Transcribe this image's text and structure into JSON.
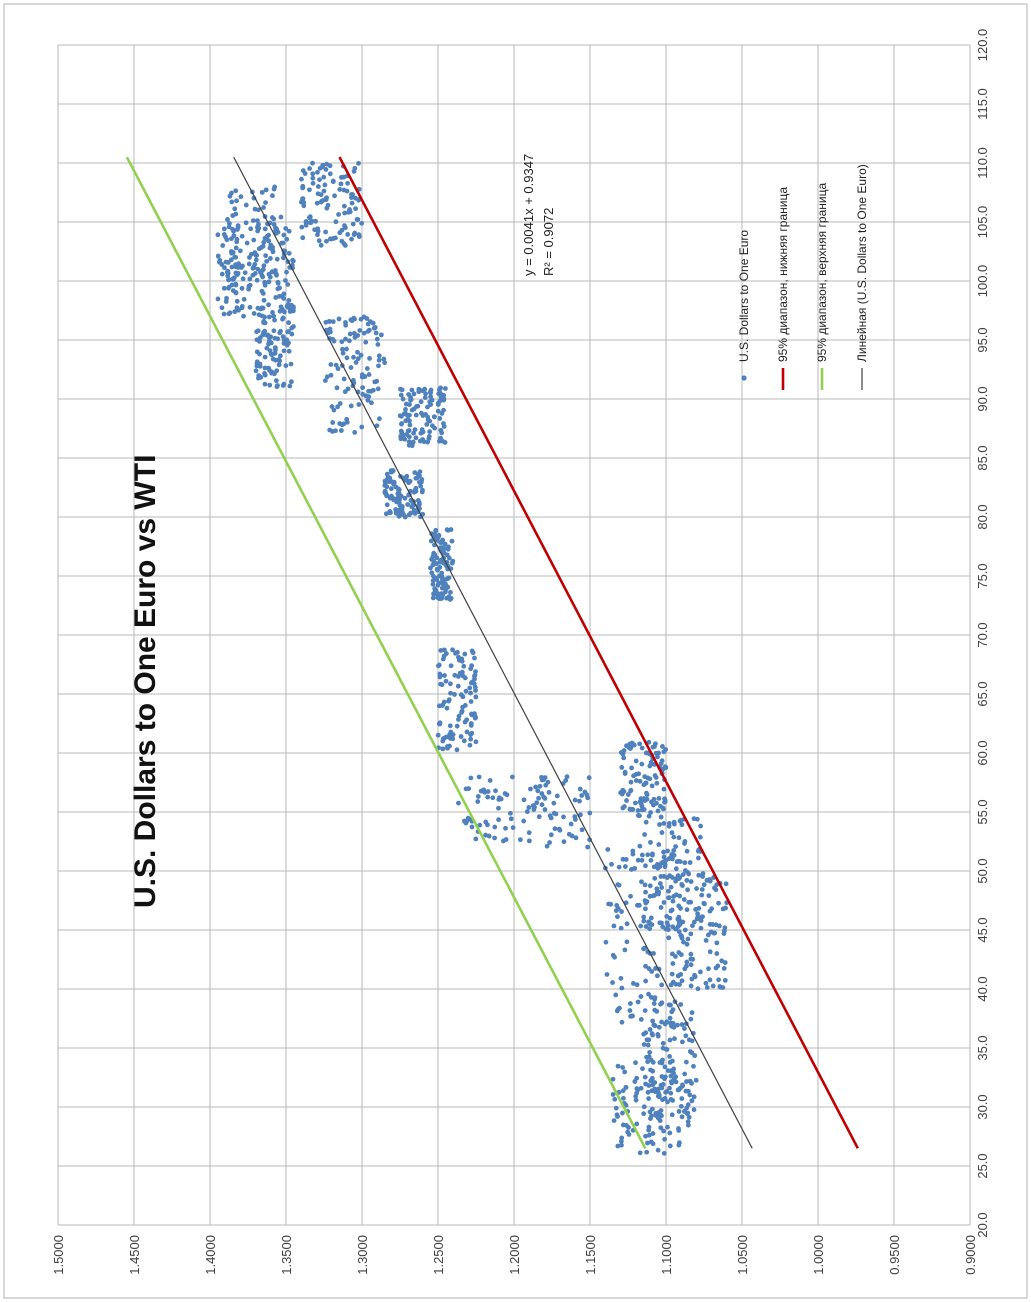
{
  "chart_data": {
    "type": "scatter",
    "title": "U.S. Dollars to One Euro vs WTI",
    "xlabel": "",
    "ylabel": "",
    "xlim": [
      20.0,
      120.0
    ],
    "ylim": [
      0.9,
      1.5
    ],
    "x_ticks": [
      "20.0",
      "25.0",
      "30.0",
      "35.0",
      "40.0",
      "45.0",
      "50.0",
      "55.0",
      "60.0",
      "65.0",
      "70.0",
      "75.0",
      "80.0",
      "85.0",
      "90.0",
      "95.0",
      "100.0",
      "105.0",
      "110.0",
      "115.0",
      "120.0"
    ],
    "y_ticks": [
      "0.9000",
      "0.9500",
      "1.0000",
      "1.0500",
      "1.1000",
      "1.1500",
      "1.2000",
      "1.2500",
      "1.3000",
      "1.3500",
      "1.4000",
      "1.4500",
      "1.5000"
    ],
    "grid": true,
    "legend_position": "bottom-right",
    "trendline_equation": "y = 0.0041x + 0.9347",
    "r_squared": "R² = 0.9072",
    "series": [
      {
        "name": "U.S. Dollars to One Euro",
        "kind": "scatter",
        "color": "#4f81bd",
        "clusters": [
          {
            "x": [
              26,
              34
            ],
            "y": [
              1.085,
              1.135
            ]
          },
          {
            "x": [
              29,
              39
            ],
            "y": [
              1.08,
              1.115
            ]
          },
          {
            "x": [
              36,
              52
            ],
            "y": [
              1.09,
              1.14
            ]
          },
          {
            "x": [
              40,
              50
            ],
            "y": [
              1.06,
              1.1
            ]
          },
          {
            "x": [
              45,
              55
            ],
            "y": [
              1.075,
              1.12
            ]
          },
          {
            "x": [
              55,
              61
            ],
            "y": [
              1.1,
              1.13
            ]
          },
          {
            "x": [
              52,
              58
            ],
            "y": [
              1.15,
              1.24
            ]
          },
          {
            "x": [
              60,
              69
            ],
            "y": [
              1.225,
              1.25
            ]
          },
          {
            "x": [
              73,
              79
            ],
            "y": [
              1.24,
              1.255
            ]
          },
          {
            "x": [
              80,
              84
            ],
            "y": [
              1.26,
              1.285
            ]
          },
          {
            "x": [
              86,
              91
            ],
            "y": [
              1.245,
              1.275
            ]
          },
          {
            "x": [
              87,
              97
            ],
            "y": [
              1.285,
              1.325
            ]
          },
          {
            "x": [
              91,
              98
            ],
            "y": [
              1.345,
              1.37
            ]
          },
          {
            "x": [
              97,
              105
            ],
            "y": [
              1.345,
              1.395
            ]
          },
          {
            "x": [
              99,
              108
            ],
            "y": [
              1.35,
              1.39
            ]
          },
          {
            "x": [
              103,
              110
            ],
            "y": [
              1.3,
              1.34
            ]
          }
        ]
      },
      {
        "name": "95% диапазон, нижняя граница",
        "kind": "line",
        "color": "#c00000",
        "x": [
          26.5,
          110.5
        ],
        "y": [
          0.9738,
          1.3148
        ]
      },
      {
        "name": "95% диапазон, верхняя граница",
        "kind": "line",
        "color": "#92d050",
        "x": [
          26.5,
          110.5
        ],
        "y": [
          1.1136,
          1.4547
        ]
      },
      {
        "name": "Линейная (U.S. Dollars to One Euro)",
        "kind": "line",
        "color": "#404040",
        "x": [
          26.5,
          110.5
        ],
        "y": [
          1.0433,
          1.3844
        ]
      }
    ]
  }
}
